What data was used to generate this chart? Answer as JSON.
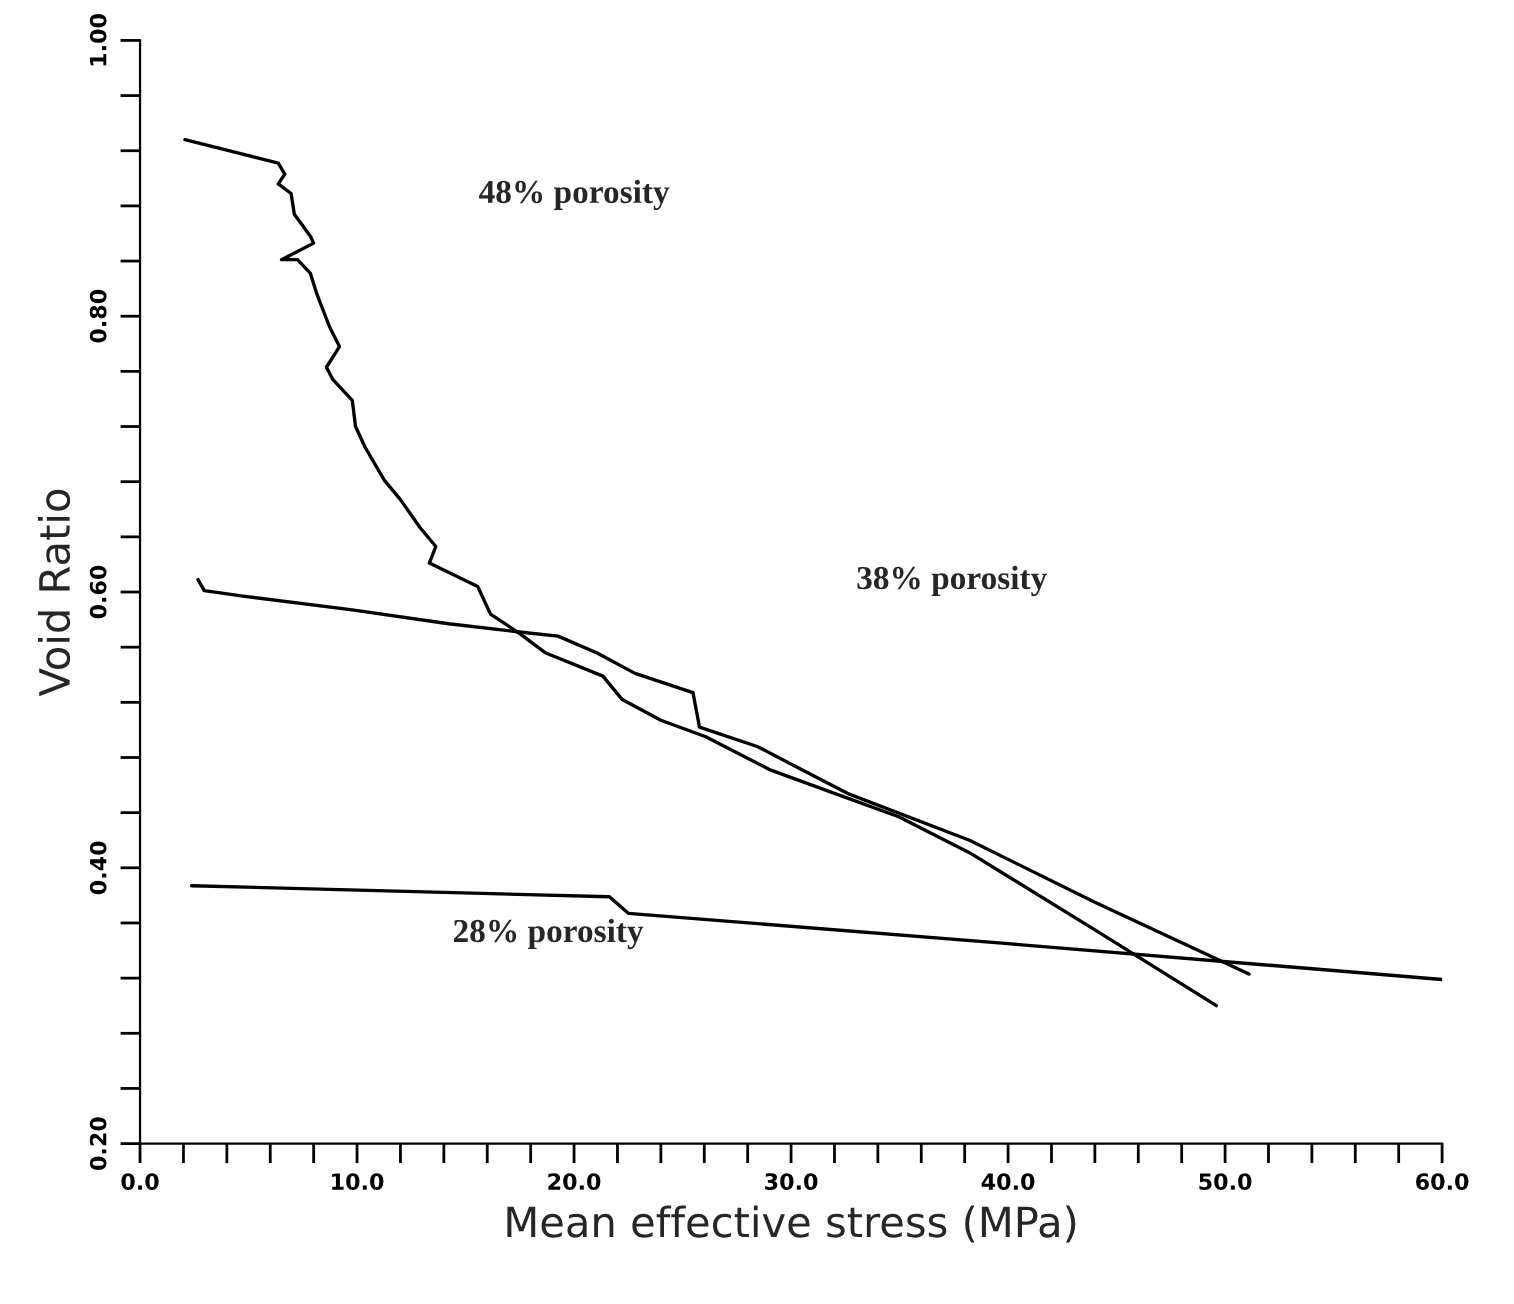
{
  "chart_data": {
    "type": "line",
    "xlabel": "Mean effective stress (MPa)",
    "ylabel": "Void Ratio",
    "xlim": [
      0,
      60
    ],
    "ylim": [
      0.2,
      1.0
    ],
    "xticks": [
      {
        "value": 0,
        "label": "0.0"
      },
      {
        "value": 2,
        "label": null
      },
      {
        "value": 4,
        "label": null
      },
      {
        "value": 6,
        "label": null
      },
      {
        "value": 8,
        "label": null
      },
      {
        "value": 10,
        "label": "10.0"
      },
      {
        "value": 12,
        "label": null
      },
      {
        "value": 14,
        "label": null
      },
      {
        "value": 16,
        "label": null
      },
      {
        "value": 18,
        "label": null
      },
      {
        "value": 20,
        "label": "20.0"
      },
      {
        "value": 22,
        "label": null
      },
      {
        "value": 24,
        "label": null
      },
      {
        "value": 26,
        "label": null
      },
      {
        "value": 28,
        "label": null
      },
      {
        "value": 30,
        "label": "30.0"
      },
      {
        "value": 32,
        "label": null
      },
      {
        "value": 34,
        "label": null
      },
      {
        "value": 36,
        "label": null
      },
      {
        "value": 38,
        "label": null
      },
      {
        "value": 40,
        "label": "40.0"
      },
      {
        "value": 42,
        "label": null
      },
      {
        "value": 44,
        "label": null
      },
      {
        "value": 46,
        "label": null
      },
      {
        "value": 48,
        "label": null
      },
      {
        "value": 50,
        "label": "50.0"
      },
      {
        "value": 52,
        "label": null
      },
      {
        "value": 54,
        "label": null
      },
      {
        "value": 56,
        "label": null
      },
      {
        "value": 58,
        "label": null
      },
      {
        "value": 60,
        "label": "60.0"
      }
    ],
    "yticks": [
      {
        "value": 0.2,
        "label": "0.20"
      },
      {
        "value": 0.24,
        "label": null
      },
      {
        "value": 0.28,
        "label": null
      },
      {
        "value": 0.32,
        "label": null
      },
      {
        "value": 0.36,
        "label": null
      },
      {
        "value": 0.4,
        "label": "0.40"
      },
      {
        "value": 0.44,
        "label": null
      },
      {
        "value": 0.48,
        "label": null
      },
      {
        "value": 0.52,
        "label": null
      },
      {
        "value": 0.56,
        "label": null
      },
      {
        "value": 0.6,
        "label": "0.60"
      },
      {
        "value": 0.64,
        "label": null
      },
      {
        "value": 0.68,
        "label": null
      },
      {
        "value": 0.72,
        "label": null
      },
      {
        "value": 0.76,
        "label": null
      },
      {
        "value": 0.8,
        "label": "0.80"
      },
      {
        "value": 0.84,
        "label": null
      },
      {
        "value": 0.88,
        "label": null
      },
      {
        "value": 0.92,
        "label": null
      },
      {
        "value": 0.96,
        "label": null
      },
      {
        "value": 1.0,
        "label": "1.00"
      }
    ],
    "grid": false,
    "legend": false,
    "marker": "none",
    "line_style": "solid",
    "series": [
      {
        "color": "#000000",
        "x": [
          2.07,
          6.37,
          6.67,
          6.37,
          6.96,
          7.11,
          7.85,
          8.0,
          6.52,
          7.26,
          7.85,
          8.15,
          8.74,
          9.19,
          8.59,
          8.89,
          9.78,
          9.93,
          10.37,
          11.26,
          12.0,
          12.89,
          13.63,
          13.33,
          15.56,
          16.15,
          17.48,
          18.67,
          21.33,
          22.22,
          24.0,
          26.07,
          29.04,
          32.0,
          34.96,
          38.22,
          44.0,
          49.6
        ],
        "values": [
          0.928,
          0.911,
          0.903,
          0.896,
          0.889,
          0.874,
          0.858,
          0.853,
          0.841,
          0.841,
          0.831,
          0.816,
          0.792,
          0.778,
          0.763,
          0.754,
          0.739,
          0.72,
          0.705,
          0.681,
          0.667,
          0.647,
          0.633,
          0.621,
          0.604,
          0.584,
          0.57,
          0.556,
          0.539,
          0.522,
          0.507,
          0.495,
          0.471,
          0.454,
          0.437,
          0.411,
          0.355,
          0.3
        ]
      },
      {
        "color": "#000000",
        "x": [
          2.67,
          2.96,
          4.74,
          9.78,
          14.22,
          17.48,
          19.26,
          21.04,
          22.81,
          25.48,
          25.78,
          28.44,
          32.59,
          38.22,
          44.0,
          51.1
        ],
        "values": [
          0.609,
          0.601,
          0.597,
          0.587,
          0.577,
          0.571,
          0.568,
          0.556,
          0.541,
          0.527,
          0.502,
          0.488,
          0.454,
          0.42,
          0.375,
          0.323
        ]
      },
      {
        "color": "#000000",
        "x": [
          2.37,
          21.63,
          22.5,
          40.0,
          60.0
        ],
        "values": [
          0.387,
          0.379,
          0.367,
          0.345,
          0.319
        ]
      }
    ],
    "annotations": [
      "48% porosity",
      "38% porosity",
      "28% porosity"
    ]
  }
}
